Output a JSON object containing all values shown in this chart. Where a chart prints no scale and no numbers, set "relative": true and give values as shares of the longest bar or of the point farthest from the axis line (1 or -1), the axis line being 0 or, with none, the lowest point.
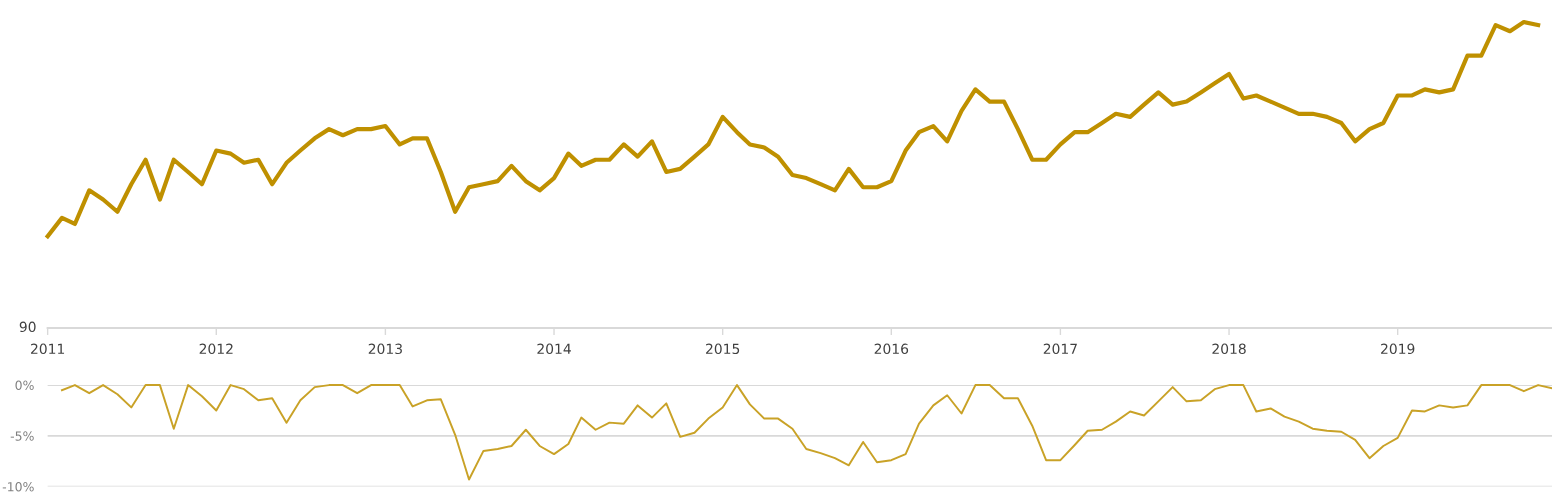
{
  "chart_data": [
    {
      "type": "line",
      "relative": true,
      "tick_labels": "x",
      "grid": false,
      "annotations": [
        "90"
      ],
      "xlim": [
        "2011-01-01",
        "2019-12-01"
      ],
      "xticks": [
        {
          "value": "2011-01-01",
          "label": "2011"
        },
        {
          "value": "2012-01-01",
          "label": "2012"
        },
        {
          "value": "2013-01-01",
          "label": "2013"
        },
        {
          "value": "2014-01-01",
          "label": "2014"
        },
        {
          "value": "2015-01-01",
          "label": "2015"
        },
        {
          "value": "2016-01-01",
          "label": "2016"
        },
        {
          "value": "2017-01-01",
          "label": "2017"
        },
        {
          "value": "2018-01-01",
          "label": "2018"
        },
        {
          "value": "2019-01-01",
          "label": "2019"
        }
      ],
      "x": [
        "2011-01",
        "2011-02",
        "2011-03",
        "2011-04",
        "2011-05",
        "2011-06",
        "2011-07",
        "2011-08",
        "2011-09",
        "2011-10",
        "2011-11",
        "2011-12",
        "2012-01",
        "2012-02",
        "2012-03",
        "2012-04",
        "2012-05",
        "2012-06",
        "2012-07",
        "2012-08",
        "2012-09",
        "2012-10",
        "2012-11",
        "2012-12",
        "2013-01",
        "2013-02",
        "2013-03",
        "2013-04",
        "2013-05",
        "2013-06",
        "2013-07",
        "2013-08",
        "2013-09",
        "2013-10",
        "2013-11",
        "2013-12",
        "2014-01",
        "2014-02",
        "2014-03",
        "2014-04",
        "2014-05",
        "2014-06",
        "2014-07",
        "2014-08",
        "2014-09",
        "2014-10",
        "2014-11",
        "2014-12",
        "2015-01",
        "2015-02",
        "2015-03",
        "2015-04",
        "2015-05",
        "2015-06",
        "2015-07",
        "2015-08",
        "2015-09",
        "2015-10",
        "2015-11",
        "2015-12",
        "2016-01",
        "2016-02",
        "2016-03",
        "2016-04",
        "2016-05",
        "2016-06",
        "2016-07",
        "2016-08",
        "2016-09",
        "2016-10",
        "2016-11",
        "2016-12",
        "2017-01",
        "2017-02",
        "2017-03",
        "2017-04",
        "2017-05",
        "2017-06",
        "2017-07",
        "2017-08",
        "2017-09",
        "2017-10",
        "2017-11",
        "2017-12",
        "2018-01",
        "2018-02",
        "2018-03",
        "2018-04",
        "2018-05",
        "2018-06",
        "2018-07",
        "2018-08",
        "2018-09",
        "2018-10",
        "2018-11",
        "2018-12",
        "2019-01",
        "2019-02",
        "2019-03",
        "2019-04",
        "2019-05",
        "2019-06",
        "2019-07",
        "2019-08",
        "2019-09",
        "2019-10",
        "2019-11"
      ],
      "series": [
        {
          "color": "#bf9000",
          "values": [
            0.3,
            0.36,
            0.34,
            0.45,
            0.42,
            0.38,
            0.47,
            0.55,
            0.42,
            0.55,
            0.51,
            0.47,
            0.58,
            0.57,
            0.54,
            0.55,
            0.47,
            0.54,
            0.58,
            0.62,
            0.65,
            0.63,
            0.65,
            0.65,
            0.66,
            0.6,
            0.62,
            0.62,
            0.51,
            0.38,
            0.46,
            0.47,
            0.48,
            0.53,
            0.48,
            0.45,
            0.49,
            0.57,
            0.53,
            0.55,
            0.55,
            0.6,
            0.56,
            0.61,
            0.51,
            0.52,
            0.56,
            0.6,
            0.69,
            0.64,
            0.6,
            0.59,
            0.56,
            0.5,
            0.49,
            0.47,
            0.45,
            0.52,
            0.46,
            0.46,
            0.48,
            0.58,
            0.64,
            0.66,
            0.61,
            0.71,
            0.78,
            0.74,
            0.74,
            0.65,
            0.55,
            0.55,
            0.6,
            0.64,
            0.64,
            0.67,
            0.7,
            0.69,
            0.73,
            0.77,
            0.73,
            0.74,
            0.77,
            0.8,
            0.83,
            0.75,
            0.76,
            0.74,
            0.72,
            0.7,
            0.7,
            0.69,
            0.67,
            0.61,
            0.65,
            0.67,
            0.76,
            0.76,
            0.78,
            0.77,
            0.78,
            0.89,
            0.89,
            0.99,
            0.97,
            1,
            0.99
          ]
        }
      ]
    },
    {
      "type": "line",
      "tick_labels": "y",
      "grid": "y",
      "xlim": [
        "2011-01-01",
        "2019-12-01"
      ],
      "ylim": [
        -10,
        0
      ],
      "yticks": [
        {
          "value": 0,
          "label": "0%"
        },
        {
          "value": -5,
          "label": "-5%"
        },
        {
          "value": -10,
          "label": "-10%"
        }
      ],
      "x": [
        "2011-02",
        "2011-03",
        "2011-04",
        "2011-05",
        "2011-06",
        "2011-07",
        "2011-08",
        "2011-09",
        "2011-10",
        "2011-11",
        "2011-12",
        "2012-01",
        "2012-02",
        "2012-03",
        "2012-04",
        "2012-05",
        "2012-06",
        "2012-07",
        "2012-08",
        "2012-09",
        "2012-10",
        "2012-11",
        "2012-12",
        "2013-01",
        "2013-02",
        "2013-03",
        "2013-04",
        "2013-05",
        "2013-06",
        "2013-07",
        "2013-08",
        "2013-09",
        "2013-10",
        "2013-11",
        "2013-12",
        "2014-01",
        "2014-02",
        "2014-03",
        "2014-04",
        "2014-05",
        "2014-06",
        "2014-07",
        "2014-08",
        "2014-09",
        "2014-10",
        "2014-11",
        "2014-12",
        "2015-01",
        "2015-02",
        "2015-03",
        "2015-04",
        "2015-05",
        "2015-06",
        "2015-07",
        "2015-08",
        "2015-09",
        "2015-10",
        "2015-11",
        "2015-12",
        "2016-01",
        "2016-02",
        "2016-03",
        "2016-04",
        "2016-05",
        "2016-06",
        "2016-07",
        "2016-08",
        "2016-09",
        "2016-10",
        "2016-11",
        "2016-12",
        "2017-01",
        "2017-02",
        "2017-03",
        "2017-04",
        "2017-05",
        "2017-06",
        "2017-07",
        "2017-08",
        "2017-09",
        "2017-10",
        "2017-11",
        "2017-12",
        "2018-01",
        "2018-02",
        "2018-03",
        "2018-04",
        "2018-05",
        "2018-06",
        "2018-07",
        "2018-08",
        "2018-09",
        "2018-10",
        "2018-11",
        "2018-12",
        "2019-01",
        "2019-02",
        "2019-03",
        "2019-04",
        "2019-05",
        "2019-06",
        "2019-07",
        "2019-08",
        "2019-09",
        "2019-10",
        "2019-11",
        "2019-12"
      ],
      "series": [
        {
          "color": "#c9a227",
          "values": [
            -0.5,
            0,
            -0.8,
            0,
            -0.9,
            -2.2,
            0,
            0,
            -4.3,
            0,
            -1.1,
            -2.5,
            0,
            -0.4,
            -1.5,
            -1.3,
            -3.7,
            -1.5,
            -0.2,
            0,
            0,
            -0.8,
            0,
            0,
            0,
            -2.1,
            -1.5,
            -1.4,
            -4.9,
            -9.3,
            -6.5,
            -6.3,
            -6.0,
            -4.4,
            -6.0,
            -6.8,
            -5.8,
            -3.2,
            -4.4,
            -3.7,
            -3.8,
            -2.0,
            -3.2,
            -1.8,
            -5.1,
            -4.7,
            -3.3,
            -2.2,
            0,
            -1.9,
            -3.3,
            -3.3,
            -4.3,
            -6.3,
            -6.7,
            -7.2,
            -7.9,
            -5.6,
            -7.6,
            -7.4,
            -6.8,
            -3.8,
            -2.0,
            -1.0,
            -2.8,
            0,
            0,
            -1.3,
            -1.3,
            -4.0,
            -7.4,
            -7.4,
            -5.9,
            -4.5,
            -4.4,
            -3.6,
            -2.6,
            -3.0,
            -1.6,
            -0.2,
            -1.6,
            -1.5,
            -0.4,
            0,
            0,
            -2.6,
            -2.3,
            -3.1,
            -3.6,
            -4.3,
            -4.5,
            -4.6,
            -5.4,
            -7.2,
            -6.0,
            -5.2,
            -2.5,
            -2.6,
            -2.0,
            -2.2,
            -2.0,
            0,
            0,
            0,
            -0.6,
            0,
            -0.3
          ]
        }
      ]
    }
  ]
}
